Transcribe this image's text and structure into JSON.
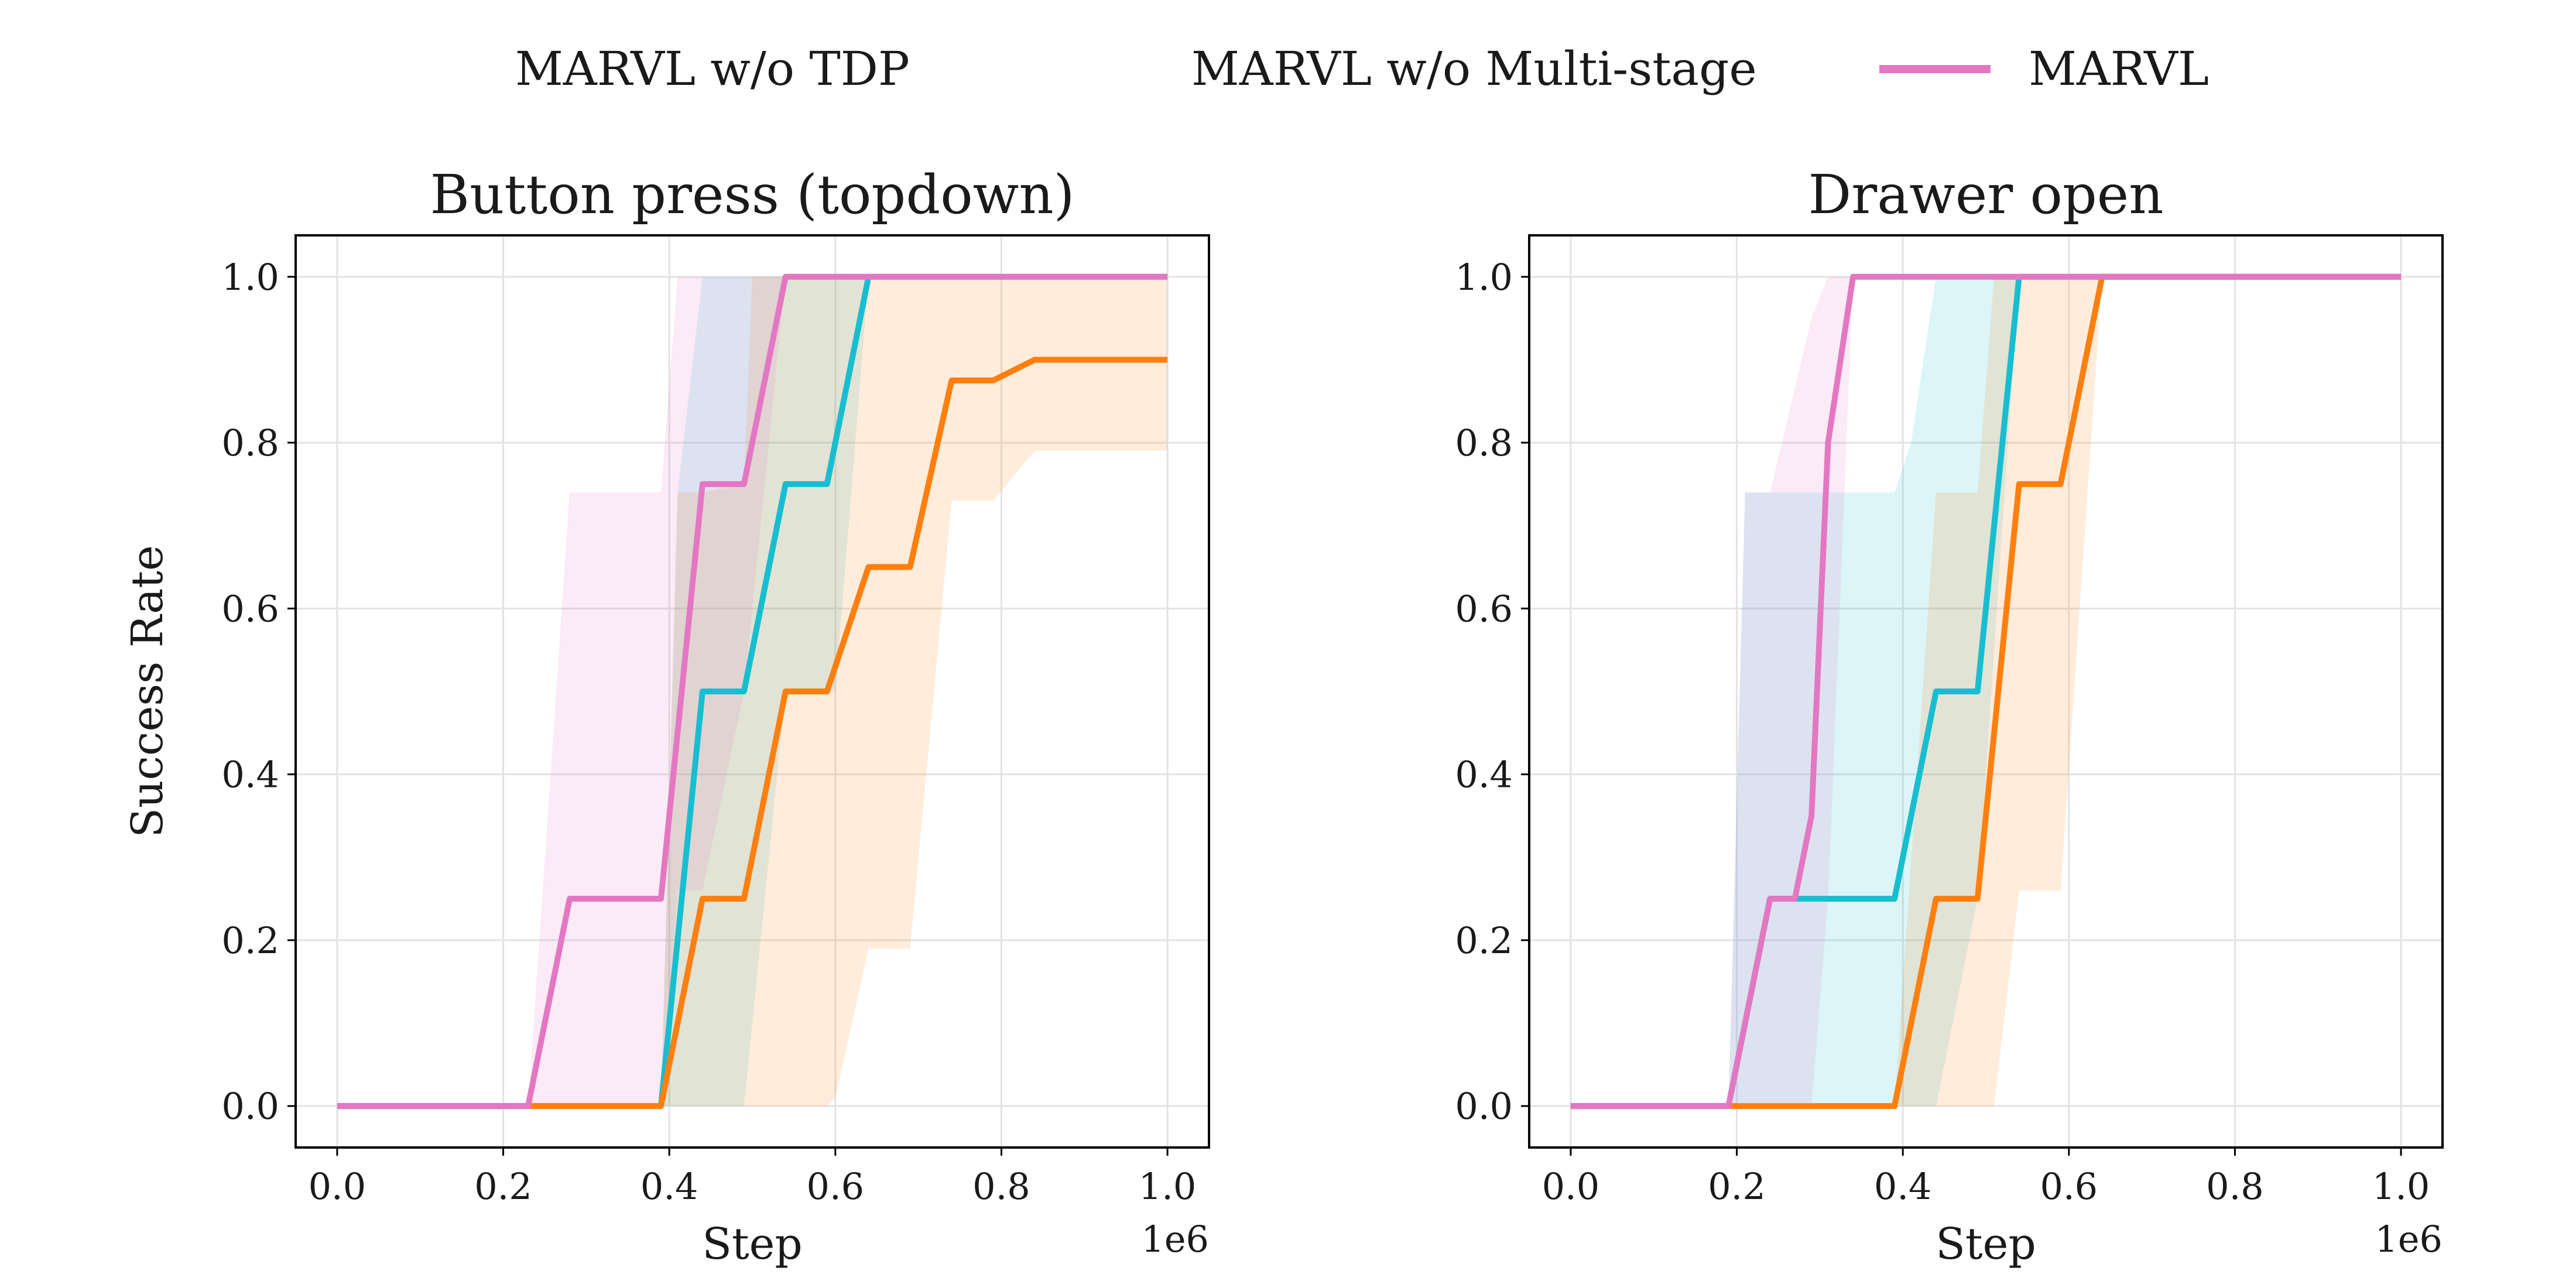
{
  "legend": [
    {
      "name": "MARVL w/o TDP",
      "color": "#17becf"
    },
    {
      "name": "MARVL w/o Multi-stage",
      "color": "#ff7f0e"
    },
    {
      "name": "MARVL",
      "color": "#e377c2"
    }
  ],
  "chart_data": [
    {
      "type": "line",
      "title": "Button press (topdown)",
      "xlabel": "Step",
      "ylabel": "Success Rate",
      "x_offset_text": "1e6",
      "xlim": [
        -0.05,
        1.05
      ],
      "ylim": [
        -0.05,
        1.05
      ],
      "xticks": [
        0.0,
        0.2,
        0.4,
        0.6,
        0.8,
        1.0
      ],
      "xtick_labels": [
        "0.0",
        "0.2",
        "0.4",
        "0.6",
        "0.8",
        "1.0"
      ],
      "yticks": [
        0.0,
        0.2,
        0.4,
        0.6,
        0.8,
        1.0
      ],
      "ytick_labels": [
        "0.0",
        "0.2",
        "0.4",
        "0.6",
        "0.8",
        "1.0"
      ],
      "grid": true,
      "series": [
        {
          "name": "MARVL w/o TDP",
          "color": "#17becf",
          "x": [
            0,
            0.39,
            0.44,
            0.49,
            0.54,
            0.59,
            0.64,
            1.0
          ],
          "y": [
            0,
            0,
            0.5,
            0.5,
            0.75,
            0.75,
            1.0,
            1.0
          ],
          "band": {
            "x": [
              0,
              0.39,
              0.41,
              0.44,
              0.49,
              0.54,
              0.59,
              0.6,
              0.64,
              1.0
            ],
            "lower": [
              0,
              0,
              0,
              0,
              0,
              0.5,
              0.5,
              0.5,
              1.0,
              1.0
            ],
            "upper": [
              0,
              0,
              0.74,
              1.0,
              1.0,
              1.0,
              1.0,
              1.0,
              1.0,
              1.0
            ]
          }
        },
        {
          "name": "MARVL w/o Multi-stage",
          "color": "#ff7f0e",
          "x": [
            0,
            0.39,
            0.44,
            0.49,
            0.54,
            0.59,
            0.64,
            0.69,
            0.74,
            0.79,
            0.84,
            1.0
          ],
          "y": [
            0,
            0,
            0.25,
            0.25,
            0.5,
            0.5,
            0.65,
            0.65,
            0.875,
            0.875,
            0.9,
            0.9
          ],
          "band": {
            "x": [
              0,
              0.39,
              0.41,
              0.44,
              0.49,
              0.5,
              0.54,
              0.59,
              0.6,
              0.64,
              0.69,
              0.74,
              0.79,
              0.84,
              1.0
            ],
            "lower": [
              0,
              0,
              0,
              0,
              0,
              0,
              0,
              0,
              0.01,
              0.19,
              0.19,
              0.73,
              0.73,
              0.79,
              0.79
            ],
            "upper": [
              0,
              0,
              0.74,
              0.74,
              0.75,
              1.0,
              1.0,
              1.0,
              1.0,
              1.0,
              1.0,
              1.0,
              1.0,
              1.0,
              1.0
            ]
          }
        },
        {
          "name": "MARVL",
          "color": "#e377c2",
          "x": [
            0,
            0.23,
            0.28,
            0.39,
            0.44,
            0.49,
            0.54,
            1.0
          ],
          "y": [
            0,
            0,
            0.25,
            0.25,
            0.75,
            0.75,
            1.0,
            1.0
          ],
          "band": {
            "x": [
              0,
              0.23,
              0.28,
              0.39,
              0.41,
              0.44,
              0.49,
              0.54,
              1.0
            ],
            "lower": [
              0,
              0,
              0,
              0,
              0.26,
              0.26,
              0.5,
              1.0,
              1.0
            ],
            "upper": [
              0,
              0,
              0.74,
              0.74,
              1.0,
              1.0,
              1.0,
              1.0,
              1.0
            ]
          }
        }
      ]
    },
    {
      "type": "line",
      "title": "Drawer open",
      "xlabel": "Step",
      "ylabel": "",
      "x_offset_text": "1e6",
      "xlim": [
        -0.05,
        1.05
      ],
      "ylim": [
        -0.05,
        1.05
      ],
      "xticks": [
        0.0,
        0.2,
        0.4,
        0.6,
        0.8,
        1.0
      ],
      "xtick_labels": [
        "0.0",
        "0.2",
        "0.4",
        "0.6",
        "0.8",
        "1.0"
      ],
      "yticks": [
        0.0,
        0.2,
        0.4,
        0.6,
        0.8,
        1.0
      ],
      "ytick_labels": [
        "0.0",
        "0.2",
        "0.4",
        "0.6",
        "0.8",
        "1.0"
      ],
      "grid": true,
      "series": [
        {
          "name": "MARVL w/o TDP",
          "color": "#17becf",
          "x": [
            0,
            0.19,
            0.24,
            0.29,
            0.34,
            0.39,
            0.44,
            0.49,
            0.54,
            1.0
          ],
          "y": [
            0,
            0,
            0.25,
            0.25,
            0.25,
            0.25,
            0.5,
            0.5,
            1.0,
            1.0
          ],
          "band": {
            "x": [
              0,
              0.19,
              0.21,
              0.29,
              0.31,
              0.39,
              0.41,
              0.44,
              0.49,
              0.54,
              1.0
            ],
            "lower": [
              0,
              0,
              0,
              0,
              0,
              0,
              0,
              0,
              0.25,
              1.0,
              1.0
            ],
            "upper": [
              0,
              0,
              0.74,
              0.74,
              0.74,
              0.74,
              0.8,
              1.0,
              1.0,
              1.0,
              1.0
            ]
          }
        },
        {
          "name": "MARVL w/o Multi-stage",
          "color": "#ff7f0e",
          "x": [
            0,
            0.39,
            0.44,
            0.49,
            0.54,
            0.59,
            0.64,
            1.0
          ],
          "y": [
            0,
            0,
            0.25,
            0.25,
            0.75,
            0.75,
            1.0,
            1.0
          ],
          "band": {
            "x": [
              0,
              0.39,
              0.44,
              0.49,
              0.51,
              0.54,
              0.59,
              0.64,
              1.0
            ],
            "lower": [
              0,
              0,
              0,
              0,
              0,
              0.26,
              0.26,
              1.0,
              1.0
            ],
            "upper": [
              0,
              0,
              0.74,
              0.74,
              1.0,
              1.0,
              1.0,
              1.0,
              1.0
            ]
          }
        },
        {
          "name": "MARVL",
          "color": "#e377c2",
          "x": [
            0,
            0.19,
            0.24,
            0.27,
            0.29,
            0.31,
            0.34,
            1.0
          ],
          "y": [
            0,
            0,
            0.25,
            0.25,
            0.35,
            0.8,
            1.0,
            1.0
          ],
          "band": {
            "x": [
              0,
              0.19,
              0.21,
              0.24,
              0.29,
              0.31,
              0.34,
              1.0
            ],
            "lower": [
              0,
              0,
              0,
              0,
              0,
              0.25,
              1.0,
              1.0
            ],
            "upper": [
              0,
              0,
              0.74,
              0.74,
              0.95,
              1.0,
              1.0,
              1.0
            ]
          }
        }
      ]
    }
  ]
}
